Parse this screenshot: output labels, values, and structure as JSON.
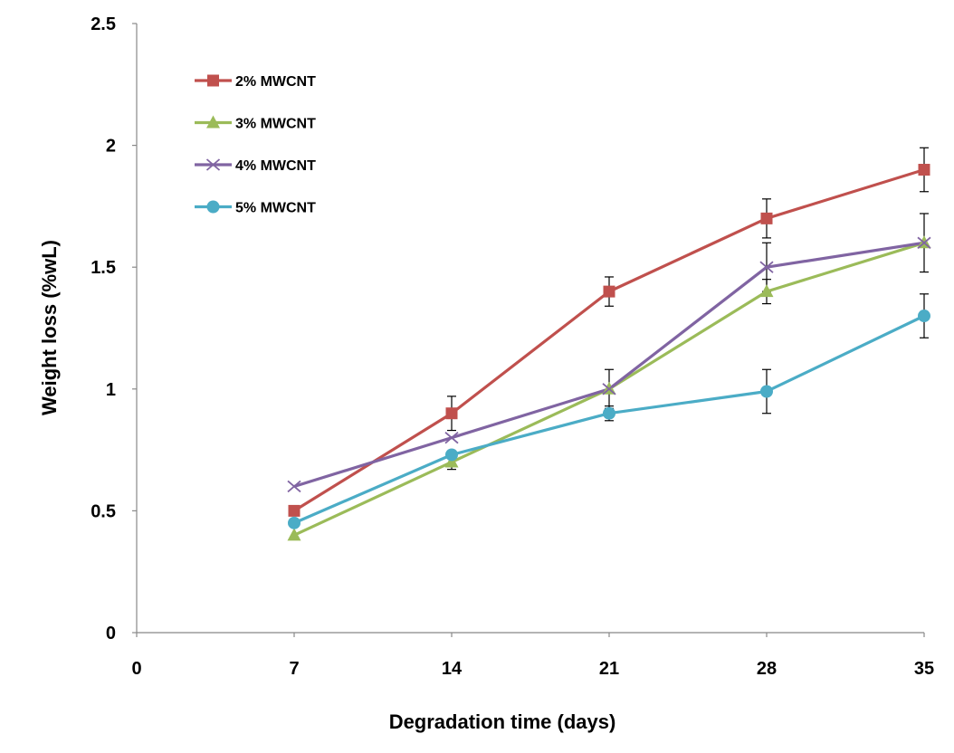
{
  "chart_data": {
    "type": "line",
    "x": [
      7,
      14,
      21,
      28,
      35
    ],
    "xlabel": "Degradation time (days)",
    "ylabel": "Weight loss (%wL)",
    "xlim": [
      0,
      35
    ],
    "ylim": [
      0,
      2.5
    ],
    "x_ticks": [
      "0",
      "7",
      "14",
      "21",
      "28",
      "35"
    ],
    "y_ticks": [
      "0",
      "0.5",
      "1",
      "1.5",
      "2",
      "2.5"
    ],
    "grid": false,
    "legend_position": "top-left",
    "series": [
      {
        "name": "2% MWCNT",
        "color": "#c0504d",
        "marker": "square",
        "values": [
          0.5,
          0.9,
          1.4,
          1.7,
          1.9
        ],
        "errors": [
          null,
          0.07,
          0.06,
          0.08,
          0.09
        ]
      },
      {
        "name": "3% MWCNT",
        "color": "#9bbb59",
        "marker": "triangle",
        "values": [
          0.4,
          0.7,
          1.0,
          1.4,
          1.6
        ],
        "errors": [
          null,
          0.03,
          null,
          0.05,
          null
        ]
      },
      {
        "name": "4% MWCNT",
        "color": "#8064a2",
        "marker": "x",
        "values": [
          0.6,
          0.8,
          1.0,
          1.5,
          1.6
        ],
        "errors": [
          null,
          null,
          0.08,
          0.1,
          0.12
        ]
      },
      {
        "name": "5% MWCNT",
        "color": "#4bacc6",
        "marker": "circle",
        "values": [
          0.45,
          0.73,
          0.9,
          0.99,
          1.3
        ],
        "errors": [
          null,
          null,
          0.03,
          0.09,
          0.09
        ]
      }
    ]
  }
}
